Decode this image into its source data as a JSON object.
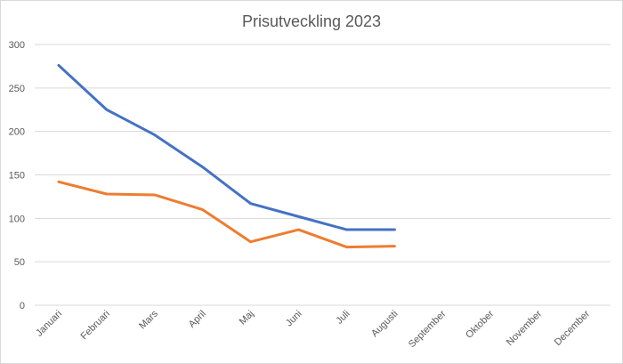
{
  "chart_data": {
    "type": "line",
    "title": "Prisutveckling 2023",
    "xlabel": "",
    "ylabel": "",
    "ylim": [
      0,
      300
    ],
    "yticks": [
      0,
      50,
      100,
      150,
      200,
      250,
      300
    ],
    "categories": [
      "Januari",
      "Februari",
      "Mars",
      "April",
      "Maj",
      "Juni",
      "Juli",
      "Augusti",
      "September",
      "Oktober",
      "November",
      "December"
    ],
    "grid": true,
    "legend": "none",
    "series": [
      {
        "color": "#4472C4",
        "values": [
          276,
          225,
          196,
          159,
          117,
          102,
          87,
          87,
          null,
          null,
          null,
          null
        ]
      },
      {
        "color": "#ED7D31",
        "values": [
          142,
          128,
          127,
          110,
          73,
          87,
          67,
          68,
          null,
          null,
          null,
          null
        ]
      }
    ]
  }
}
